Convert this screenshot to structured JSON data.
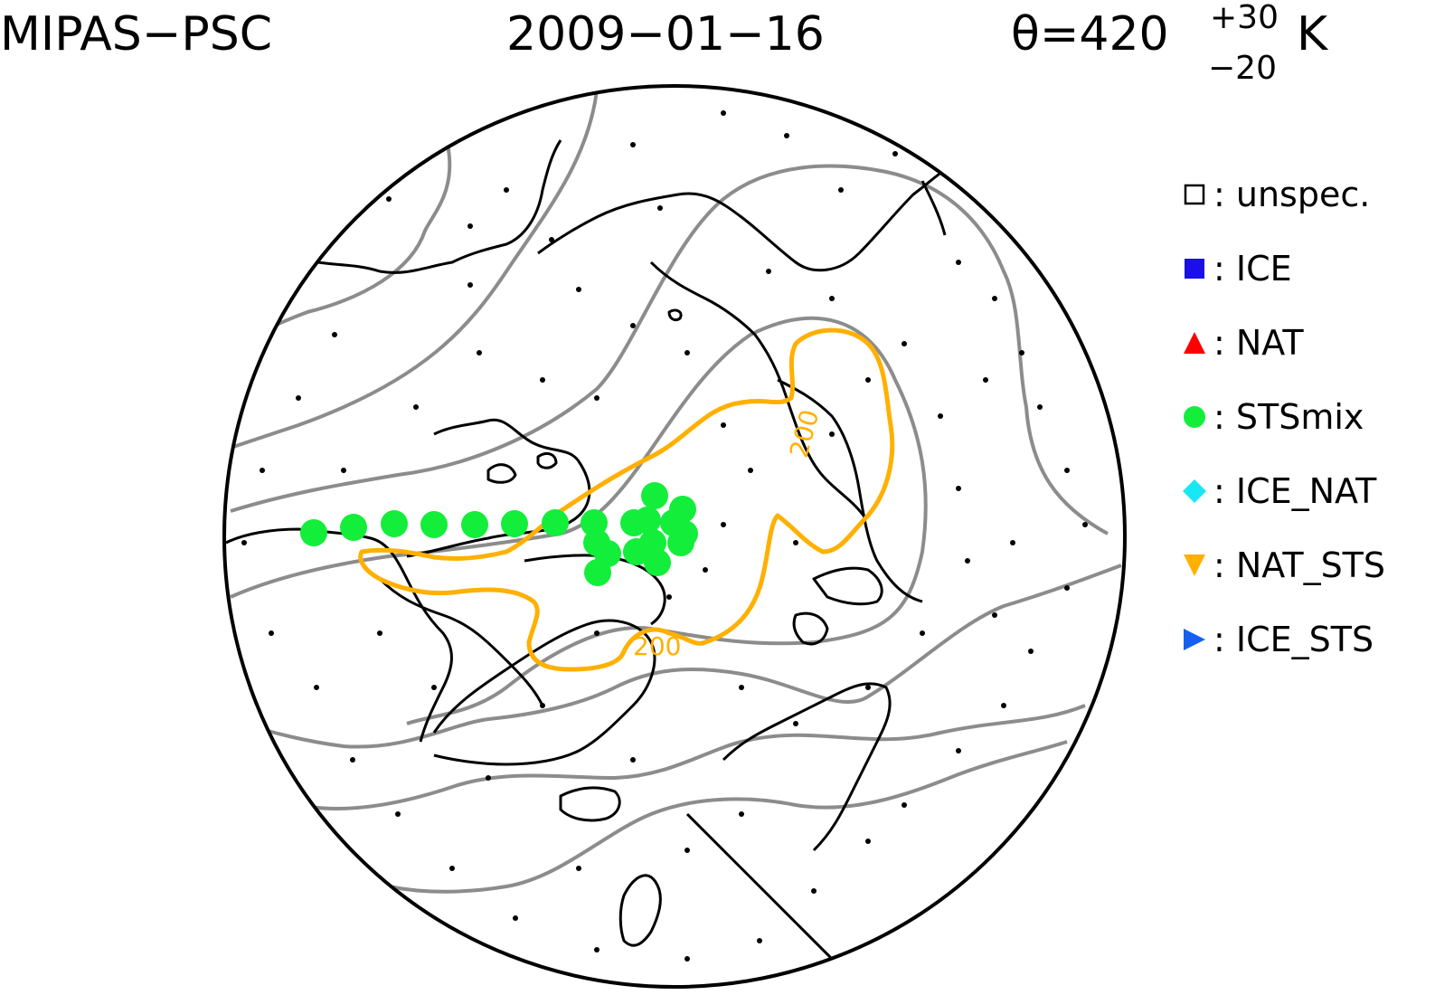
{
  "header": {
    "instrument": "MIPAS−PSC",
    "date": "2009−01−16",
    "theta_label": "θ=420",
    "theta_plus": "+30",
    "theta_minus": "−20",
    "theta_unit": "K"
  },
  "contour_labels": [
    "200",
    "200"
  ],
  "legend": [
    {
      "label": ": unspec.",
      "symbol": "open-square-icon",
      "color": "#000000"
    },
    {
      "label": ": ICE",
      "symbol": "filled-square-icon",
      "color": "#1a0fe6"
    },
    {
      "label": ": NAT",
      "symbol": "triangle-up-icon",
      "color": "#ff0000"
    },
    {
      "label": ": STSmix",
      "symbol": "circle-icon",
      "color": "#12ee3a"
    },
    {
      "label": ": ICE_NAT",
      "symbol": "diamond-icon",
      "color": "#19e8f2"
    },
    {
      "label": ": NAT_STS",
      "symbol": "triangle-down-icon",
      "color": "#ffb000"
    },
    {
      "label": ": ICE_STS",
      "symbol": "triangle-right-icon",
      "color": "#1560f0"
    }
  ],
  "colors": {
    "coast": "#000000",
    "contour": "#8c8c8c",
    "orange_contour": "#ffb000",
    "stsmix": "#12ee3a"
  }
}
